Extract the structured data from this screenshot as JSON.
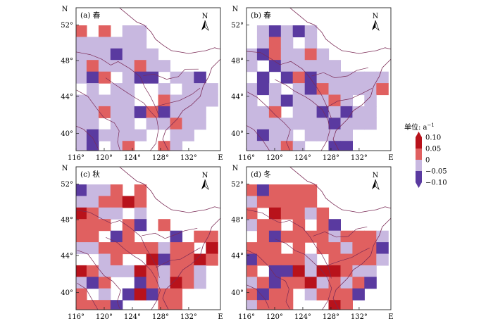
{
  "figure": {
    "x_axis_unit_label": "E",
    "y_axis_unit_label": "N",
    "x_ticks": [
      "116°",
      "120°",
      "124°",
      "128°",
      "132°"
    ],
    "y_ticks": [
      "52°",
      "48°",
      "44°",
      "40°"
    ],
    "north_arrow": "N",
    "palette": {
      "strong_pos": "#b8121b",
      "pos": "#e06060",
      "neg": "#c8b8e0",
      "strong_neg": "#5a3aa0",
      "border": "#7a2a55",
      "frame": "#222222"
    }
  },
  "panels": [
    {
      "id": "a",
      "title": "(a) 春",
      "dominant": "neg"
    },
    {
      "id": "b",
      "title": "(b) 春",
      "dominant": "neg"
    },
    {
      "id": "c",
      "title": "(c) 秋",
      "dominant": "pos"
    },
    {
      "id": "d",
      "title": "(d) 冬",
      "dominant": "pos"
    }
  ],
  "legend": {
    "title": "单位: a",
    "title_superscript": "−1",
    "labels": [
      "0.10",
      "0.05",
      "0",
      "−0.05",
      "−0.10"
    ],
    "colors": [
      "#b8121b",
      "#e06060",
      "#c8b8e0",
      "#5a3aa0"
    ]
  }
}
